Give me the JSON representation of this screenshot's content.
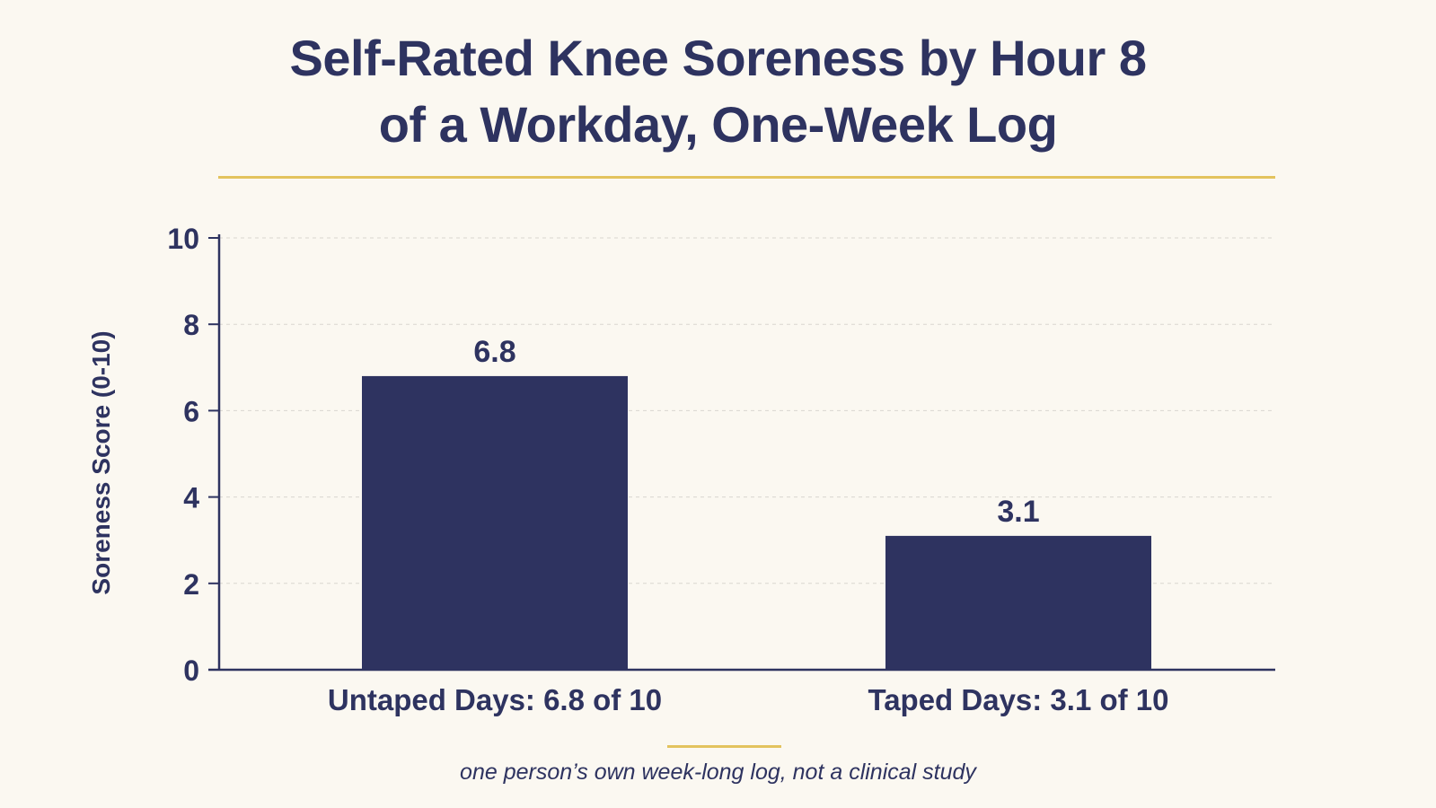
{
  "title_line1": "Self-Rated Knee Soreness by Hour 8",
  "title_line2": "of a Workday, One-Week Log",
  "footnote": "one person’s own week-long log, not a clinical study",
  "colors": {
    "background": "#fbf8f1",
    "bar": "#2e3360",
    "text": "#2e3360",
    "accent_rule": "#e3c35e",
    "gridline": "#d9d6cf"
  },
  "chart_data": {
    "type": "bar",
    "title": "Self-Rated Knee Soreness by Hour 8 of a Workday, One-Week Log",
    "categories": [
      "Untaped Days: 6.8 of 10",
      "Taped Days: 3.1 of 10"
    ],
    "values": [
      6.8,
      3.1
    ],
    "data_labels": [
      "6.8",
      "3.1"
    ],
    "xlabel": "",
    "ylabel": "Soreness Score (0-10)",
    "ylim": [
      0,
      10
    ],
    "yticks": [
      0,
      2,
      4,
      6,
      8,
      10
    ],
    "grid": true,
    "legend": "none"
  }
}
